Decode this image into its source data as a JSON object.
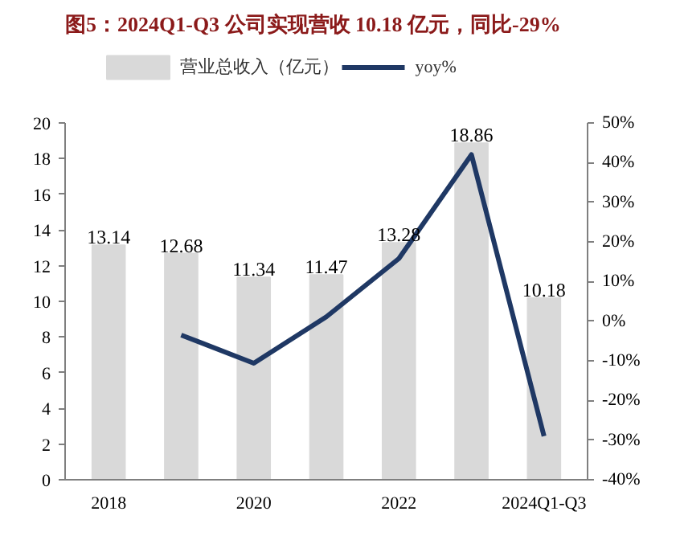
{
  "chart_data": {
    "type": "bar",
    "title": "图5：2024Q1-Q3 公司实现营收 10.18 亿元，同比-29%",
    "categories": [
      "2018",
      null,
      "2020",
      null,
      "2022",
      null,
      "2024Q1-Q3"
    ],
    "series": [
      {
        "name": "营业总收入（亿元）",
        "color": "#d9d9d9",
        "values": [
          13.14,
          12.68,
          11.34,
          11.47,
          13.28,
          18.86,
          10.18
        ],
        "value_labels": [
          "13.14",
          "12.68",
          "11.34",
          "11.47",
          "13.28",
          "18.86",
          "10.18"
        ]
      },
      {
        "name": "yoy%",
        "type": "line",
        "axis": "y2",
        "color": "#1f3864",
        "values": [
          null,
          -3.5,
          -10.6,
          1.1,
          15.8,
          42.0,
          -29.0
        ]
      }
    ],
    "ylim": [
      0,
      20
    ],
    "yticks": [
      0,
      2,
      4,
      6,
      8,
      10,
      12,
      14,
      16,
      18,
      20
    ],
    "y2lim": [
      -40,
      50
    ],
    "y2ticks": [
      {
        "value": -40,
        "label": "-40%"
      },
      {
        "value": -30,
        "label": "-30%"
      },
      {
        "value": -20,
        "label": "-20%"
      },
      {
        "value": -10,
        "label": "-10%"
      },
      {
        "value": 0,
        "label": "0%"
      },
      {
        "value": 10,
        "label": "10%"
      },
      {
        "value": 20,
        "label": "20%"
      },
      {
        "value": 30,
        "label": "30%"
      },
      {
        "value": 40,
        "label": "40%"
      },
      {
        "value": 50,
        "label": "50%"
      }
    ],
    "legend": "top",
    "grid": false,
    "marker": "none",
    "line_style": "solid"
  }
}
